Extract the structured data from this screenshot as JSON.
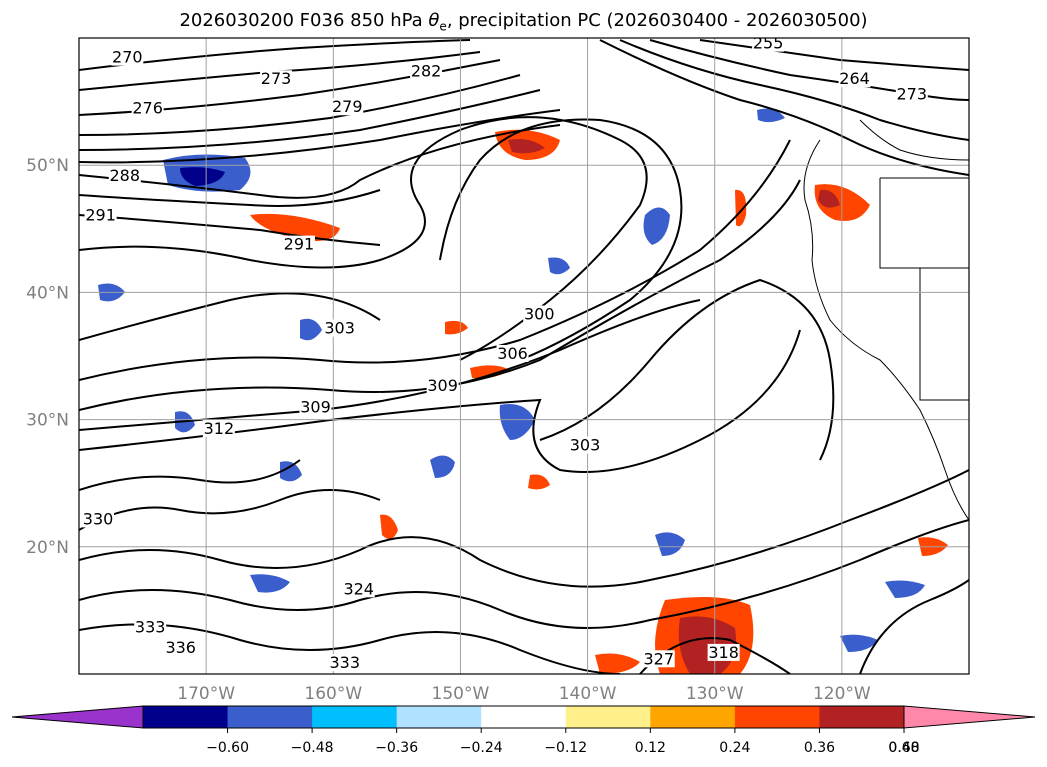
{
  "title_parts": {
    "prefix": "2026030200 F036 850 hPa ",
    "theta": "θ",
    "sub": "e",
    "suffix": ", precipitation PC (2026030400 - 2026030500)"
  },
  "map": {
    "projection": "PlateCarree",
    "extent_lon": [
      -180,
      -110
    ],
    "extent_lat": [
      10,
      60
    ],
    "grid": true
  },
  "axes": {
    "lon_ticks": [
      {
        "value": -170,
        "label": "170°W"
      },
      {
        "value": -160,
        "label": "160°W"
      },
      {
        "value": -150,
        "label": "150°W"
      },
      {
        "value": -140,
        "label": "140°W"
      },
      {
        "value": -130,
        "label": "130°W"
      },
      {
        "value": -120,
        "label": "120°W"
      }
    ],
    "lat_ticks": [
      {
        "value": 50,
        "label": "50°N"
      },
      {
        "value": 40,
        "label": "40°N"
      },
      {
        "value": 30,
        "label": "30°N"
      },
      {
        "value": 20,
        "label": "20°N"
      }
    ]
  },
  "colorbar": {
    "extend": "both",
    "ticks": [
      "−0.60",
      "−0.48",
      "−0.36",
      "−0.24",
      "−0.12",
      "0.12",
      "0.24",
      "0.36",
      "0.48",
      "0.60"
    ],
    "colors": [
      "#9933cc",
      "#00008b",
      "#3a5fcd",
      "#00bfff",
      "#b0e2ff",
      "#ffffff",
      "#fff08c",
      "#ffa500",
      "#ff4500",
      "#b22222",
      "#ff88aa"
    ]
  },
  "contour_labels": [
    {
      "text": "270",
      "lon": -176.2,
      "lat": 58.3
    },
    {
      "text": "273",
      "lon": -164.5,
      "lat": 56.6
    },
    {
      "text": "282",
      "lon": -152.7,
      "lat": 57.2
    },
    {
      "text": "276",
      "lon": -174.6,
      "lat": 54.3
    },
    {
      "text": "279",
      "lon": -158.9,
      "lat": 54.4
    },
    {
      "text": "288",
      "lon": -176.4,
      "lat": 49.0
    },
    {
      "text": "291",
      "lon": -178.3,
      "lat": 45.9
    },
    {
      "text": "291",
      "lon": -162.7,
      "lat": 43.6
    },
    {
      "text": "255",
      "lon": -125.8,
      "lat": 59.4
    },
    {
      "text": "264",
      "lon": -119.0,
      "lat": 56.6
    },
    {
      "text": "273",
      "lon": -114.5,
      "lat": 55.4
    },
    {
      "text": "303",
      "lon": -159.5,
      "lat": 37.0
    },
    {
      "text": "300",
      "lon": -143.8,
      "lat": 38.1
    },
    {
      "text": "306",
      "lon": -145.9,
      "lat": 35.0
    },
    {
      "text": "309",
      "lon": -151.4,
      "lat": 32.5
    },
    {
      "text": "309",
      "lon": -161.4,
      "lat": 30.8
    },
    {
      "text": "312",
      "lon": -169.0,
      "lat": 29.1
    },
    {
      "text": "303",
      "lon": -140.2,
      "lat": 27.8
    },
    {
      "text": "330",
      "lon": -178.5,
      "lat": 22.0
    },
    {
      "text": "324",
      "lon": -158.0,
      "lat": 16.5
    },
    {
      "text": "333",
      "lon": -174.4,
      "lat": 13.5
    },
    {
      "text": "336",
      "lon": -172.0,
      "lat": 11.9
    },
    {
      "text": "318",
      "lon": -129.3,
      "lat": 11.5
    },
    {
      "text": "327",
      "lon": -134.4,
      "lat": 11.0
    },
    {
      "text": "333",
      "lon": -159.1,
      "lat": 10.7
    }
  ]
}
